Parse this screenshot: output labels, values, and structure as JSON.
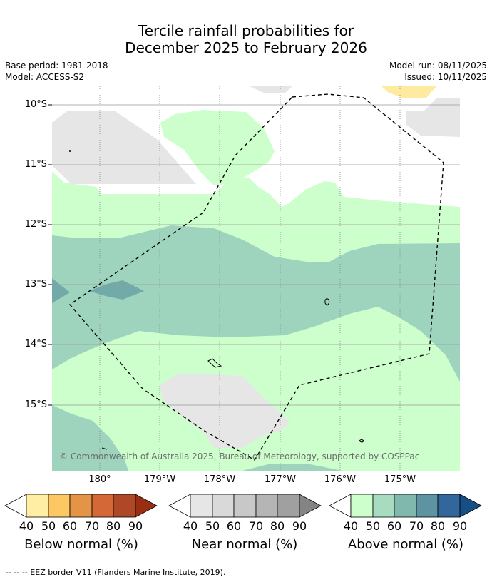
{
  "title": {
    "line1": "Tercile rainfall probabilities for",
    "line2": "December 2025 to February 2026"
  },
  "meta": {
    "base_period": "Base period: 1981-2018",
    "model": "Model: ACCESS-S2",
    "model_run": "Model run: 08/11/2025",
    "issued": "Issued: 10/11/2025"
  },
  "map": {
    "lat_labels": [
      "10°S",
      "11°S",
      "12°S",
      "13°S",
      "14°S",
      "15°S"
    ],
    "lon_labels": [
      "180°",
      "179°W",
      "178°W",
      "177°W",
      "176°W",
      "175°W"
    ],
    "copyright": "© Commonwealth of Australia 2025, Bureau of Meteorology, supported by COSPPac",
    "colors": {
      "above_50": "#ccffcc",
      "above_60": "#9ed3bd",
      "above_70": "#72a9a9",
      "near_50": "#e6e6e6",
      "below_50": "#ffeba0",
      "land_outline": "#000000"
    }
  },
  "legend": {
    "ticks": [
      "40",
      "50",
      "60",
      "70",
      "80",
      "90"
    ],
    "below": {
      "title": "Below normal (%)",
      "colors": [
        "#ffffff",
        "#ffeea3",
        "#fdc864",
        "#e39447",
        "#d46836",
        "#ae4826",
        "#9a2e12"
      ]
    },
    "near": {
      "title": "Near normal (%)",
      "colors": [
        "#ffffff",
        "#e6e6e6",
        "#d9d9d9",
        "#c8c8c8",
        "#b5b5b5",
        "#a0a0a0",
        "#848484"
      ]
    },
    "above": {
      "title": "Above normal (%)",
      "colors": [
        "#ffffff",
        "#ccffcc",
        "#a8dcc0",
        "#80b8ad",
        "#5e93a2",
        "#33669b",
        "#164e86"
      ]
    }
  },
  "footnote": "-- -- -- EEZ border V11 (Flanders Marine Institute, 2019)."
}
